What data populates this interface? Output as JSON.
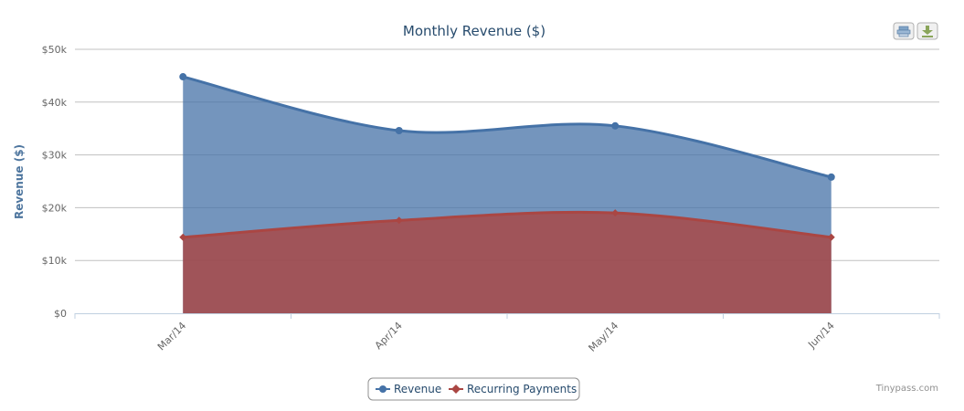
{
  "chart_data": {
    "type": "area",
    "title": "Monthly Revenue ($)",
    "xlabel": "",
    "ylabel": "Revenue ($)",
    "categories": [
      "Mar/14",
      "Apr/14",
      "May/14",
      "Jun/14"
    ],
    "series": [
      {
        "name": "Revenue",
        "values": [
          44800,
          34600,
          35500,
          25800
        ],
        "color": "#4572a7",
        "marker": "circle"
      },
      {
        "name": "Recurring Payments",
        "values": [
          14400,
          17600,
          19000,
          14400
        ],
        "color": "#aa4643",
        "marker": "diamond"
      }
    ],
    "ylim": [
      0,
      50000
    ],
    "yticks": [
      0,
      10000,
      20000,
      30000,
      40000,
      50000
    ],
    "ytick_labels": [
      "$0",
      "$10k",
      "$20k",
      "$30k",
      "$40k",
      "$50k"
    ],
    "grid": true,
    "smooth": true,
    "legend_position": "bottom-center"
  },
  "toolbar": {
    "print_icon": "print-icon",
    "export_icon": "download-icon"
  },
  "credit": "Tinypass.com"
}
